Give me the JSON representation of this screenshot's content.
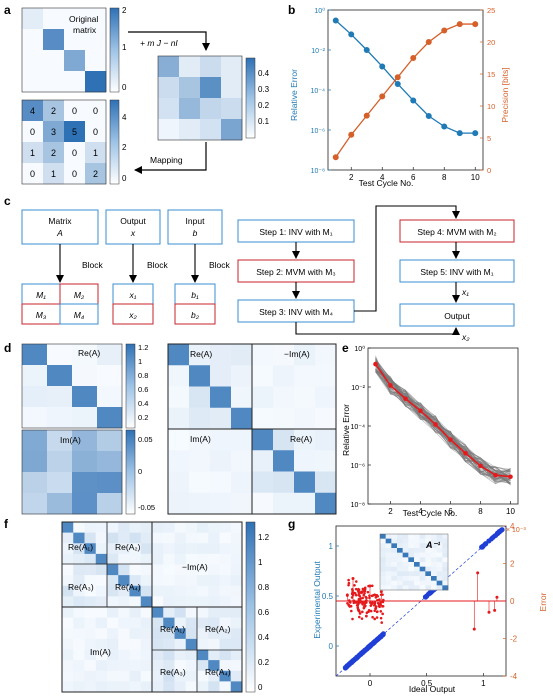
{
  "panels": {
    "a": {
      "letter": "a",
      "label_original": "Original",
      "label_matrix": "matrix",
      "op_label": "+ m J   − nI",
      "mapping_label": "Mapping",
      "original_matrix": [
        [
          0.2,
          0.0,
          0.0,
          0.0
        ],
        [
          0.0,
          1.6,
          0.0,
          0.0
        ],
        [
          0.0,
          0.0,
          1.2,
          0.0
        ],
        [
          0.0,
          0.0,
          0.0,
          2.0
        ]
      ],
      "cb1_ticks": [
        "2",
        "1",
        "0"
      ],
      "shifted_matrix": [
        [
          0.25,
          0.05,
          0.1,
          0.05
        ],
        [
          0.1,
          0.18,
          0.35,
          0.05
        ],
        [
          0.08,
          0.22,
          0.12,
          0.1
        ],
        [
          0.02,
          0.05,
          0.08,
          0.28
        ]
      ],
      "cb2_ticks": [
        "0.4",
        "0.3",
        "0.2",
        "0.1"
      ],
      "mapped_matrix": [
        [
          4,
          2,
          0,
          0
        ],
        [
          0,
          3,
          5,
          0
        ],
        [
          1,
          2,
          0,
          1
        ],
        [
          0,
          1,
          0,
          2
        ]
      ],
      "cb3_ticks": [
        "4",
        "2",
        "0"
      ]
    },
    "b": {
      "letter": "b",
      "ylabel_left": "Relative Error",
      "ylabel_right": "Precision [bits]",
      "xlabel": "Test Cycle No.",
      "xticks": [
        "2",
        "4",
        "6",
        "8",
        "10"
      ],
      "yticks_left": [
        "10⁰",
        "10⁻²",
        "10⁻⁴",
        "10⁻⁶",
        "10⁻⁸"
      ],
      "yticks_right": [
        "25",
        "20",
        "15",
        "10",
        "5",
        "0"
      ]
    },
    "c": {
      "letter": "c",
      "matrix_box": "Matrix",
      "matrix_sym": "A",
      "output_box": "Output",
      "output_sym": "x",
      "input_box": "Input",
      "input_sym": "b",
      "block": "Block",
      "M1": "M₁",
      "M2": "M₂",
      "M3": "M₃",
      "M4": "M₄",
      "x1": "x₁",
      "x2": "x₂",
      "b1": "b₁",
      "b2": "b₂",
      "step1": "Step 1: INV with M₁",
      "step2": "Step 2: MVM with M₃",
      "step3": "Step 3: INV with M₄",
      "step4": "Step 4: MVM with M₂",
      "step5": "Step 5: INV with M₁",
      "output": "Output"
    },
    "d": {
      "letter": "d",
      "re_label": "Re(A)",
      "im_label": "Im(A)",
      "neg_im_label": "−Im(A)",
      "cb_top_ticks": [
        "1.2",
        "1",
        "0.8",
        "0.6",
        "0.4",
        "0.2"
      ],
      "cb_bot_ticks": [
        "0.05",
        "0",
        "-0.05"
      ]
    },
    "e": {
      "letter": "e",
      "ylabel": "Relative Error",
      "xlabel": "Test Cycle No.",
      "xticks": [
        "2",
        "4",
        "6",
        "8",
        "10"
      ],
      "yticks": [
        "10⁰",
        "10⁻²",
        "10⁻⁴",
        "10⁻⁶",
        "10⁻⁸"
      ]
    },
    "f": {
      "letter": "f",
      "re1": "Re(A₁)",
      "re2": "Re(A₂)",
      "re3": "Re(A₃)",
      "re4": "Re(A₄)",
      "neg_im": "−Im(A)",
      "im": "Im(A)",
      "cb_ticks": [
        "1.2",
        "1",
        "0.8",
        "0.6",
        "0.4",
        "0.2",
        "0"
      ]
    },
    "g": {
      "letter": "g",
      "ylabel_left": "Experimental Output",
      "ylabel_right": "Error",
      "xlabel": "Ideal Output",
      "inset": "A⁻¹",
      "exp_label": "× 10⁻³",
      "xticks": [
        "0",
        "0.5",
        "1"
      ],
      "yticks_left": [
        "1",
        "0.5",
        "0"
      ],
      "yticks_right": [
        "4",
        "2",
        "0",
        "-2",
        "-4"
      ]
    }
  },
  "chart_data": [
    {
      "type": "line",
      "panel": "b",
      "xlabel": "Test Cycle No.",
      "x": [
        1,
        2,
        3,
        4,
        5,
        6,
        7,
        8,
        9,
        10
      ],
      "series": [
        {
          "name": "Relative Error",
          "axis": "left",
          "scale": "log",
          "values": [
            0.3,
            0.06,
            0.01,
            0.0015,
            0.0002,
            3e-05,
            5e-06,
            1.5e-06,
            7e-07,
            7e-07
          ]
        },
        {
          "name": "Precision [bits]",
          "axis": "right",
          "values": [
            2,
            5.5,
            8.5,
            11.5,
            14.5,
            17.5,
            20,
            21.8,
            22.8,
            22.8
          ]
        }
      ],
      "ylim_left": [
        1e-08,
        1
      ],
      "ylim_right": [
        0,
        25
      ],
      "xlim": [
        0.5,
        10.5
      ]
    },
    {
      "type": "line",
      "panel": "e",
      "xlabel": "Test Cycle No.",
      "ylabel": "Relative Error",
      "x": [
        1,
        2,
        3,
        4,
        5,
        6,
        7,
        8,
        9,
        10
      ],
      "series": [
        {
          "name": "mean",
          "color": "#e41a1c",
          "values": [
            0.15,
            0.012,
            0.0025,
            0.0006,
            0.00012,
            2e-05,
            4e-06,
            9e-07,
            3e-07,
            2.5e-07
          ]
        }
      ],
      "ylim": [
        1e-08,
        1
      ],
      "xlim": [
        0.5,
        10.5
      ]
    },
    {
      "type": "scatter",
      "panel": "g",
      "xlabel": "Ideal Output",
      "ylabel_left": "Experimental Output",
      "ylabel_right": "Error",
      "xlim": [
        -0.3,
        1.2
      ],
      "ylim_left": [
        -0.3,
        1.2
      ],
      "ylim_right": [
        -4,
        4
      ],
      "series": [
        {
          "name": "Experimental Output",
          "color": "#1f3fd6",
          "points": [
            [
              -0.2,
              -0.2
            ],
            [
              -0.15,
              -0.15
            ],
            [
              -0.1,
              -0.1
            ],
            [
              -0.05,
              -0.05
            ],
            [
              0,
              0
            ],
            [
              0.02,
              0.02
            ],
            [
              0.05,
              0.05
            ],
            [
              0.08,
              0.08
            ],
            [
              0.1,
              0.1
            ],
            [
              0.5,
              0.5
            ],
            [
              0.52,
              0.52
            ],
            [
              0.55,
              0.55
            ],
            [
              0.6,
              0.6
            ],
            [
              0.62,
              0.62
            ],
            [
              1.0,
              1.0
            ],
            [
              1.05,
              1.05
            ],
            [
              1.1,
              1.1
            ],
            [
              1.15,
              1.15
            ]
          ]
        },
        {
          "name": "Error",
          "color": "#e41a1c",
          "points": [
            [
              -0.2,
              0.3
            ],
            [
              -0.15,
              1.2
            ],
            [
              -0.1,
              -0.5
            ],
            [
              0,
              0.8
            ],
            [
              0.05,
              -0.4
            ],
            [
              0.1,
              0.5
            ],
            [
              0.92,
              -1.5
            ],
            [
              0.95,
              1.5
            ],
            [
              1.05,
              -0.6
            ],
            [
              1.1,
              -0.5
            ],
            [
              1.12,
              0.2
            ]
          ]
        }
      ]
    }
  ]
}
